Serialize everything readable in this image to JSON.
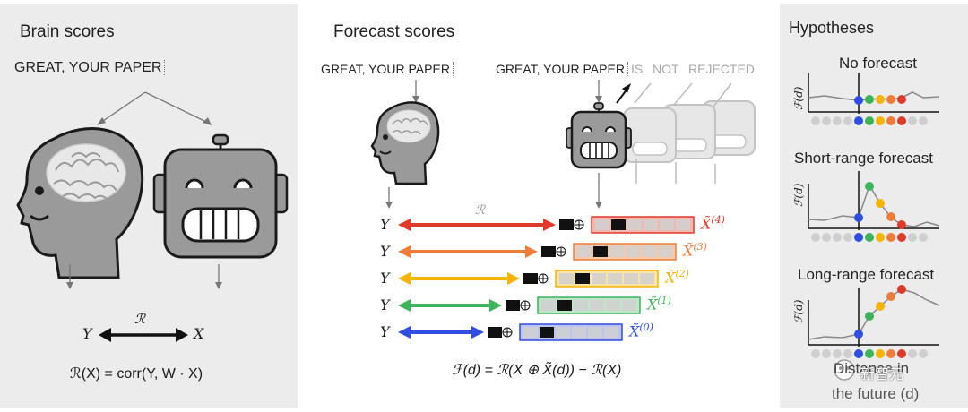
{
  "brain_panel": {
    "title": "Brain scores",
    "sentence": "GREAT, YOUR PAPER",
    "y_label": "Y",
    "r_label": "ℛ",
    "x_label": "X",
    "formula": "ℛ(X) = corr(Y, W · X)"
  },
  "forecast_panel": {
    "title": "Forecast scores",
    "sentence_left": "GREAT, YOUR PAPER",
    "sentence_right": "GREAT, YOUR PAPER",
    "future_words": [
      "IS",
      "NOT",
      "REJECTED"
    ],
    "r_label": "ℛ",
    "rows": [
      {
        "y": "Y",
        "x_label": "X̃",
        "sup": "(4)",
        "color": "#e03a2a",
        "light": "#f2b8b0"
      },
      {
        "y": "Y",
        "x_label": "X̃",
        "sup": "(3)",
        "color": "#ee7d3b",
        "light": "#f7c9a8"
      },
      {
        "y": "Y",
        "x_label": "X̃",
        "sup": "(2)",
        "color": "#f4b400",
        "light": "#fbe3a6"
      },
      {
        "y": "Y",
        "x_label": "X̃",
        "sup": "(1)",
        "color": "#3cb45a",
        "light": "#bfe5c8"
      },
      {
        "y": "Y",
        "x_label": "X̃",
        "sup": "(0)",
        "color": "#2f4fe0",
        "light": "#bcc5f2"
      }
    ],
    "formula": "ℱ(d) = ℛ(X ⊕ X̃(d)) − ℛ(X)"
  },
  "hypotheses_panel": {
    "title": "Hypotheses",
    "no_forecast": "No forecast",
    "short_range": "Short-range forecast",
    "long_range": "Long-range forecast",
    "axis_label": "ℱ(d)",
    "footer_line1": "Distance in",
    "footer_line2": "the future (d)",
    "dot_colors": [
      "#2f4fe0",
      "#3cb45a",
      "#f4b400",
      "#ee7d3b",
      "#e03a2a"
    ],
    "watermark": "新智元"
  }
}
